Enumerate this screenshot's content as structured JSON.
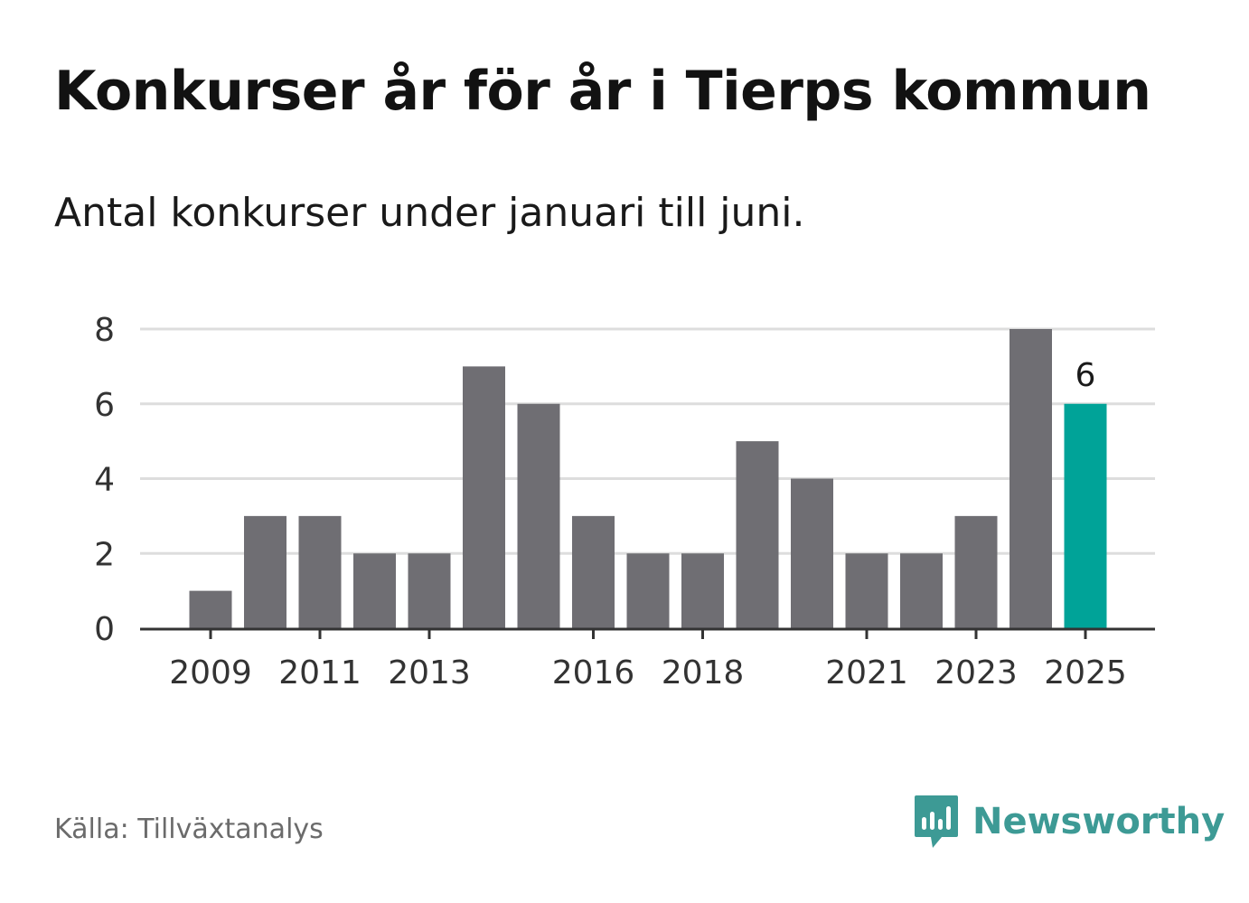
{
  "title": "Konkurser år för år i Tierps kommun",
  "subtitle": "Antal konkurser under januari till juni.",
  "source": "Källa: Tillväxtanalys",
  "brand": {
    "name": "Newsworthy",
    "icon": "newsworthy-logo-icon",
    "color": "#3d9a95"
  },
  "colors": {
    "bar": "#6f6e73",
    "highlight": "#00a398",
    "grid": "#dddddd",
    "axis": "#333333"
  },
  "chart_data": {
    "type": "bar",
    "categories": [
      "2009",
      "2010",
      "2011",
      "2012",
      "2013",
      "2014",
      "2015",
      "2016",
      "2017",
      "2018",
      "2019",
      "2020",
      "2021",
      "2022",
      "2023",
      "2024",
      "2025"
    ],
    "values": [
      1,
      3,
      3,
      2,
      2,
      7,
      6,
      3,
      2,
      2,
      5,
      4,
      2,
      2,
      3,
      8,
      6
    ],
    "tick_labels": [
      "2009",
      "2011",
      "2013",
      "2016",
      "2018",
      "2021",
      "2023",
      "2025"
    ],
    "y_ticks": [
      "0",
      "2",
      "4",
      "6",
      "8"
    ],
    "ylim": [
      0,
      8
    ],
    "highlight": {
      "category": "2025",
      "label": "6"
    },
    "grid": true,
    "xlabel": "",
    "ylabel": ""
  }
}
